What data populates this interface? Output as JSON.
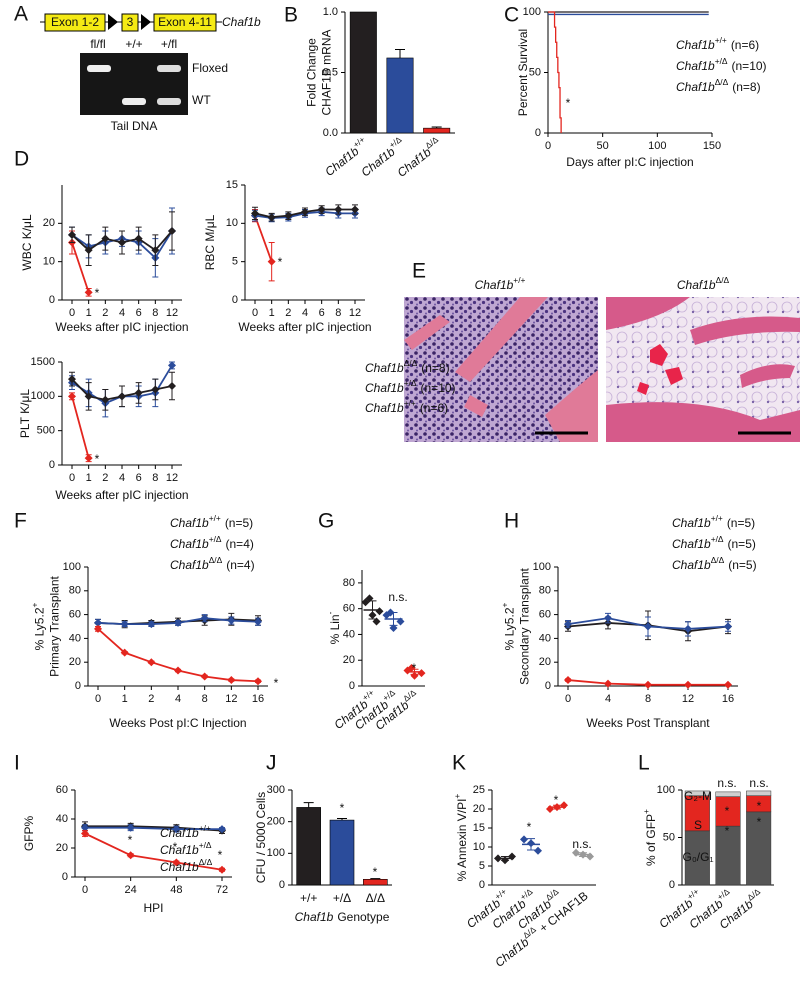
{
  "gene_panel": {
    "panel": "A",
    "exons": [
      "Exon 1-2",
      "3",
      "Exon 4-11"
    ],
    "gene": "Chaf1b",
    "lanes": [
      "fl/fl",
      "+/+",
      "+/fl"
    ],
    "bands": [
      "Floxed",
      "WT"
    ],
    "caption": "Tail DNA"
  },
  "histology_panel": {
    "panel": "E",
    "images": [
      {
        "text": "Chaf1b",
        "sup": "+/+"
      },
      {
        "text": "Chaf1b",
        "sup": "Δ/Δ"
      }
    ]
  },
  "chart_data": [
    {
      "panel": "B",
      "type": "bar",
      "ylabel": [
        "Fold Change",
        "CHAF1B mRNA"
      ],
      "ylim": [
        0,
        1
      ],
      "yticks": [
        {
          "value": 0,
          "label": "0.0"
        },
        0.5,
        {
          "value": 1,
          "label": "1.0"
        }
      ],
      "categories": [
        {
          "text": "Chaf1b",
          "sup": "+/+"
        },
        {
          "text": "Chaf1b",
          "sup": "+/Δ"
        },
        {
          "text": "Chaf1b",
          "sup": "Δ/Δ"
        }
      ],
      "values": [
        1,
        0.62,
        0.04
      ],
      "errors": [
        null,
        0.07,
        0.01
      ],
      "colors": [
        "#231f20",
        "#2b4c9b",
        "#e3261f"
      ]
    },
    {
      "panel": "C",
      "type": "survival",
      "ylabel": [
        "Percent Survival"
      ],
      "xlabel": "Days after pI:C injection",
      "xlim": [
        0,
        150
      ],
      "xticks": [
        0,
        50,
        100,
        150
      ],
      "ylim": [
        0,
        100
      ],
      "yticks": [
        0,
        50,
        100
      ],
      "series": [
        {
          "name": {
            "text": "Chaf1b",
            "sup": "+/+"
          },
          "n": "(n=6)",
          "color": "#231f20",
          "x": [
            0,
            147
          ],
          "values": [
            100,
            100
          ]
        },
        {
          "name": {
            "text": "Chaf1b",
            "sup": "+/Δ"
          },
          "n": "(n=10)",
          "color": "#2b4c9b",
          "x": [
            0,
            147
          ],
          "values": [
            98,
            98
          ]
        },
        {
          "name": {
            "text": "Chaf1b",
            "sup": "Δ/Δ"
          },
          "n": "(n=8)",
          "color": "#e3261f",
          "x": [
            0,
            5,
            6,
            7,
            8,
            9,
            10,
            11,
            12
          ],
          "values": [
            100,
            100,
            87.5,
            75,
            62.5,
            50,
            37.5,
            12.5,
            0
          ]
        }
      ],
      "annotations": [
        "*"
      ]
    },
    {
      "panel": "D",
      "type": "line",
      "ylabel": [
        "WBC K/μL"
      ],
      "xlabel": "Weeks after pIC injection",
      "categories": [
        "0",
        "1",
        "2",
        "4",
        "6",
        "8",
        "12"
      ],
      "ylim": [
        0,
        30
      ],
      "yticks": [
        0,
        10,
        20
      ],
      "series": [
        {
          "name": {
            "text": "Chaf1b",
            "sup": "Δ/Δ"
          },
          "color": "#e3261f",
          "values": [
            15,
            2,
            null,
            null,
            null,
            null,
            null
          ],
          "errors": [
            3,
            1,
            null,
            null,
            null,
            null,
            null
          ]
        },
        {
          "name": {
            "text": "Chaf1b",
            "sup": "+/Δ"
          },
          "color": "#2b4c9b",
          "values": [
            17,
            14,
            15,
            16,
            15,
            11,
            18
          ],
          "errors": [
            2,
            3,
            3,
            2,
            3,
            5,
            6
          ]
        },
        {
          "name": {
            "text": "Chaf1b",
            "sup": "+/+"
          },
          "color": "#231f20",
          "values": [
            17,
            13,
            16,
            15,
            16,
            13,
            18
          ],
          "errors": [
            2,
            4,
            3,
            3,
            3,
            4,
            5
          ]
        }
      ],
      "annotations": [
        "*"
      ]
    },
    {
      "type": "line",
      "ylabel": [
        "RBC M/μL"
      ],
      "xlabel": "Weeks after pIC injection",
      "categories": [
        "0",
        "1",
        "2",
        "4",
        "6",
        "8",
        "12"
      ],
      "ylim": [
        0,
        15
      ],
      "yticks": [
        0,
        5,
        10,
        15
      ],
      "series": [
        {
          "name": {
            "text": "Chaf1b",
            "sup": "Δ/Δ"
          },
          "color": "#e3261f",
          "values": [
            11,
            5,
            null,
            null,
            null,
            null,
            null
          ],
          "errors": [
            0.8,
            2.5,
            null,
            null,
            null,
            null,
            null
          ]
        },
        {
          "name": {
            "text": "Chaf1b",
            "sup": "+/Δ"
          },
          "color": "#2b4c9b",
          "values": [
            11,
            10.7,
            10.8,
            11.3,
            11.5,
            11.3,
            11.3
          ],
          "errors": [
            0.7,
            0.5,
            0.5,
            0.5,
            0.5,
            0.6,
            0.6
          ]
        },
        {
          "name": {
            "text": "Chaf1b",
            "sup": "+/+"
          },
          "color": "#231f20",
          "values": [
            11.3,
            10.8,
            11,
            11.5,
            11.8,
            11.8,
            11.8
          ],
          "errors": [
            0.8,
            0.5,
            0.5,
            0.5,
            0.5,
            0.6,
            0.6
          ]
        }
      ],
      "annotations": [
        "*"
      ]
    },
    {
      "type": "line",
      "ylabel": [
        "PLT K/μL"
      ],
      "xlabel": "Weeks after pIC injection",
      "categories": [
        "0",
        "1",
        "2",
        "4",
        "6",
        "8",
        "12"
      ],
      "ylim": [
        0,
        1500
      ],
      "yticks": [
        0,
        500,
        1000,
        1500
      ],
      "series": [
        {
          "name": {
            "text": "Chaf1b",
            "sup": "Δ/Δ"
          },
          "n": "(n=8)",
          "color": "#e3261f",
          "values": [
            1000,
            100,
            null,
            null,
            null,
            null,
            null
          ],
          "errors": [
            50,
            50,
            null,
            null,
            null,
            null,
            null
          ]
        },
        {
          "name": {
            "text": "Chaf1b",
            "sup": "+/Δ"
          },
          "n": "(n=10)",
          "color": "#2b4c9b",
          "values": [
            1200,
            1050,
            900,
            1000,
            1000,
            1050,
            1450
          ],
          "errors": [
            100,
            200,
            200,
            150,
            150,
            200,
            50
          ]
        },
        {
          "name": {
            "text": "Chaf1b",
            "sup": "+/+"
          },
          "n": "(n=6)",
          "color": "#231f20",
          "values": [
            1250,
            1000,
            950,
            1000,
            1050,
            1100,
            1150
          ],
          "errors": [
            100,
            200,
            150,
            150,
            150,
            150,
            200
          ]
        }
      ],
      "annotations": [
        "*"
      ]
    },
    {
      "panel": "F",
      "type": "line",
      "ylabel": [
        {
          "text": "% Ly5.2",
          "sup": "+"
        },
        "Primary Transplant"
      ],
      "xlabel": "Weeks Post pI:C Injection",
      "categories": [
        "0",
        "1",
        "2",
        "4",
        "8",
        "12",
        "16"
      ],
      "ylim": [
        0,
        100
      ],
      "yticks": [
        0,
        20,
        40,
        60,
        80,
        100
      ],
      "series": [
        {
          "name": {
            "text": "Chaf1b",
            "sup": "+/+"
          },
          "n": "(n=5)",
          "color": "#231f20",
          "values": [
            53,
            52,
            53,
            54,
            55,
            56,
            55
          ],
          "errors": [
            3,
            3,
            2,
            3,
            4,
            5,
            4
          ]
        },
        {
          "name": {
            "text": "Chaf1b",
            "sup": "+/Δ"
          },
          "n": "(n=4)",
          "color": "#2b4c9b",
          "values": [
            53,
            52,
            52,
            53,
            57,
            55,
            54
          ],
          "errors": [
            3,
            2,
            2,
            2,
            3,
            3,
            3
          ]
        },
        {
          "name": {
            "text": "Chaf1b",
            "sup": "Δ/Δ"
          },
          "n": "(n=4)",
          "color": "#e3261f",
          "values": [
            48,
            28,
            20,
            13,
            8,
            5,
            4
          ],
          "errors": [
            2,
            1,
            1,
            1,
            1,
            1,
            1
          ]
        }
      ],
      "annotations": [
        "*"
      ]
    },
    {
      "panel": "G",
      "type": "dot",
      "ylabel": [
        {
          "text": "% Lin",
          "sup": "-"
        }
      ],
      "ylim": [
        0,
        90
      ],
      "yticks": [
        0,
        20,
        40,
        60,
        80
      ],
      "groups": [
        {
          "name": {
            "text": "Chaf1b",
            "sup": "+/+"
          },
          "color": "#231f20",
          "points": [
            65,
            58,
            55,
            68,
            50
          ],
          "mean": 59,
          "sd": 7
        },
        {
          "name": {
            "text": "Chaf1b",
            "sup": "+/Δ"
          },
          "color": "#2b4c9b",
          "points": [
            55,
            50,
            45,
            57
          ],
          "mean": 52,
          "sd": 5
        },
        {
          "name": {
            "text": "Chaf1b",
            "sup": "Δ/Δ"
          },
          "color": "#e3261f",
          "points": [
            12,
            10,
            8,
            14
          ],
          "mean": 11,
          "sd": 2
        }
      ],
      "annotations": [
        "n.s.",
        "*"
      ]
    },
    {
      "panel": "H",
      "type": "line",
      "ylabel": [
        {
          "text": "% Ly5.2",
          "sup": "+"
        },
        "Secondary Transplant"
      ],
      "xlabel": "Weeks Post Transplant",
      "categories": [
        "0",
        "4",
        "8",
        "12",
        "16"
      ],
      "ylim": [
        0,
        100
      ],
      "yticks": [
        0,
        20,
        40,
        60,
        80,
        100
      ],
      "series": [
        {
          "name": {
            "text": "Chaf1b",
            "sup": "+/+"
          },
          "n": "(n=5)",
          "color": "#231f20",
          "values": [
            50,
            53,
            51,
            46,
            50
          ],
          "errors": [
            4,
            5,
            12,
            8,
            6
          ]
        },
        {
          "name": {
            "text": "Chaf1b",
            "sup": "+/Δ"
          },
          "n": "(n=5)",
          "color": "#2b4c9b",
          "values": [
            52,
            57,
            50,
            48,
            50
          ],
          "errors": [
            3,
            4,
            8,
            6,
            4
          ]
        },
        {
          "name": {
            "text": "Chaf1b",
            "sup": "Δ/Δ"
          },
          "n": "(n=5)",
          "color": "#e3261f",
          "values": [
            5,
            2,
            1,
            1,
            1
          ],
          "errors": [
            1,
            0.5,
            0.5,
            0.5,
            0.5
          ]
        }
      ]
    },
    {
      "panel": "I",
      "type": "line",
      "ylabel": [
        "GFP%"
      ],
      "xlabel": "HPI",
      "categories": [
        "0",
        "24",
        "48",
        "72"
      ],
      "ylim": [
        0,
        60
      ],
      "yticks": [
        0,
        20,
        40,
        60
      ],
      "series": [
        {
          "name": {
            "text": "Chaf1b",
            "sup": "+/+"
          },
          "color": "#231f20",
          "values": [
            35,
            35,
            34,
            32
          ],
          "errors": [
            3,
            2,
            2,
            2
          ]
        },
        {
          "name": {
            "text": "Chaf1b",
            "sup": "+/Δ"
          },
          "color": "#2b4c9b",
          "values": [
            34,
            34,
            33,
            33
          ],
          "errors": [
            2,
            2,
            2,
            1
          ]
        },
        {
          "name": {
            "text": "Chaf1b",
            "sup": "Δ/Δ"
          },
          "color": "#e3261f",
          "values": [
            30,
            15,
            10,
            5
          ],
          "errors": [
            2,
            1,
            1,
            1
          ]
        }
      ],
      "annotations": [
        "*",
        "*",
        "*"
      ]
    },
    {
      "panel": "J",
      "type": "bar",
      "ylabel": [
        "CFU / 5000 Cells"
      ],
      "xlabel": {
        "italic": "Chaf1b",
        "text": "Genotype"
      },
      "categories": [
        "+/+",
        "+/Δ",
        "Δ/Δ"
      ],
      "ylim": [
        0,
        300
      ],
      "yticks": [
        0,
        100,
        200,
        300
      ],
      "values": [
        245,
        205,
        18
      ],
      "errors": [
        15,
        5,
        2
      ],
      "colors": [
        "#231f20",
        "#2b4c9b",
        "#e3261f"
      ],
      "annotations": [
        "*",
        "*"
      ]
    },
    {
      "panel": "K",
      "type": "dot",
      "ylabel": [
        {
          "text": "% Annexin V/PI",
          "sup": "+"
        }
      ],
      "ylim": [
        0,
        25
      ],
      "yticks": [
        0,
        5,
        10,
        15,
        20,
        25
      ],
      "groups": [
        {
          "name": {
            "text": "Chaf1b",
            "sup": "+/+"
          },
          "color": "#231f20",
          "points": [
            7,
            7.5,
            6.5
          ],
          "mean": 7,
          "sd": 0.5
        },
        {
          "name": {
            "text": "Chaf1b",
            "sup": "+/Δ"
          },
          "color": "#2b4c9b",
          "points": [
            12,
            9,
            11
          ],
          "mean": 10.7,
          "sd": 1.5
        },
        {
          "name": {
            "text": "Chaf1b",
            "sup": "Δ/Δ"
          },
          "color": "#e3261f",
          "points": [
            20,
            21,
            20.5
          ],
          "mean": 20.5,
          "sd": 0.5
        },
        {
          "name": {
            "text": "Chaf1b",
            "sup": "Δ/Δ",
            "suffix": "+ CHAF1B"
          },
          "color": "#9a9a9a",
          "points": [
            8.5,
            7.5,
            8
          ],
          "mean": 8,
          "sd": 0.5
        }
      ],
      "annotations": [
        "*",
        "*",
        "n.s."
      ]
    },
    {
      "panel": "L",
      "type": "stacked_bar",
      "ylabel": [
        {
          "text": "% of GFP",
          "sup": "+"
        }
      ],
      "ylim": [
        0,
        100
      ],
      "yticks": [
        0,
        50,
        100
      ],
      "categories": [
        {
          "text": "Chaf1b",
          "sup": "+/+"
        },
        {
          "text": "Chaf1b",
          "sup": "+/Δ"
        },
        {
          "text": "Chaf1b",
          "sup": "Δ/Δ"
        }
      ],
      "series": [
        {
          "name": "G₀/G₁",
          "color": "#555555",
          "values": [
            57,
            62,
            77
          ]
        },
        {
          "name": "S",
          "color": "#e3261f",
          "values": [
            37,
            31,
            17
          ]
        },
        {
          "name": "G₂-M",
          "color": "#cfcfcf",
          "values": [
            5,
            5,
            5
          ]
        }
      ],
      "annotations": [
        "n.s.",
        "n.s.",
        "*",
        "*",
        "*",
        "*"
      ]
    }
  ]
}
